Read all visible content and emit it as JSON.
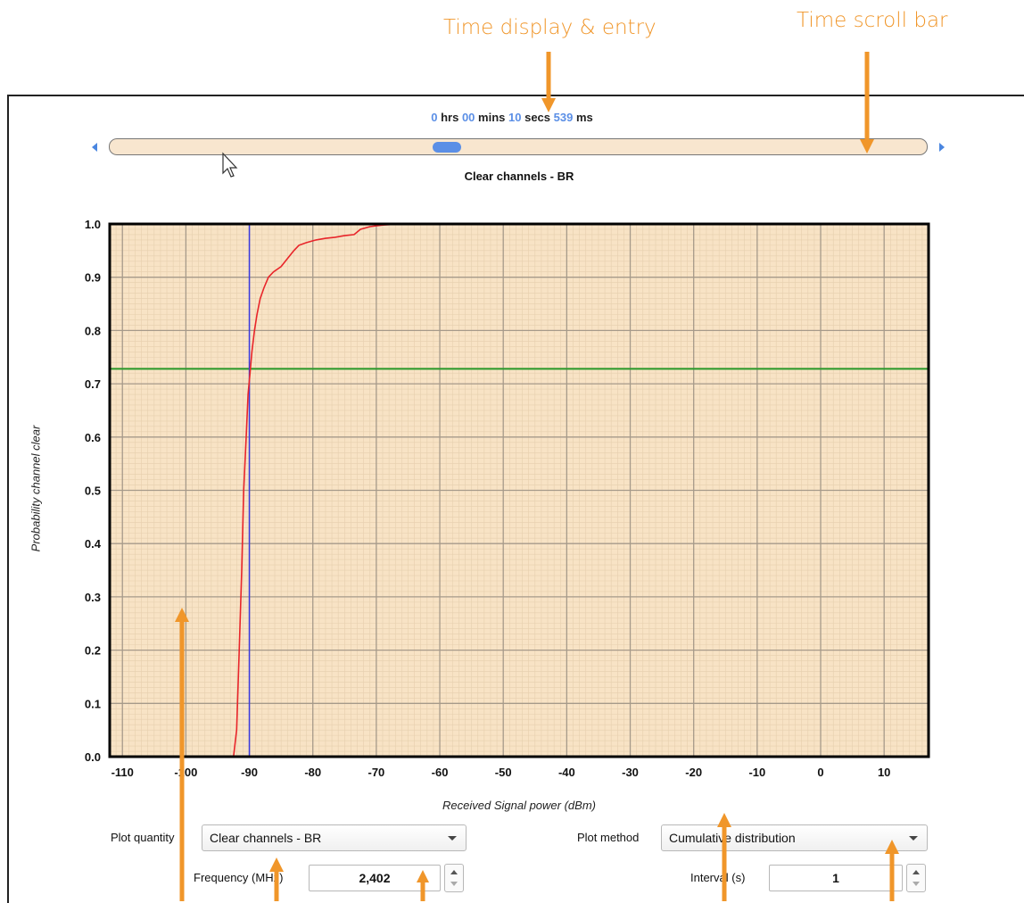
{
  "callouts": {
    "time_display": "Time display & entry",
    "time_scroll": "Time scroll bar"
  },
  "time": {
    "hrs": "0",
    "hrs_label": "hrs",
    "mins": "00",
    "mins_label": "mins",
    "secs": "10",
    "secs_label": "secs",
    "ms": "539",
    "ms_label": "ms"
  },
  "scrollbar": {
    "position_fraction": 0.41
  },
  "colors": {
    "accent": "#f0962a",
    "time_value": "#5b8fe6",
    "plot_bg": "#f8e3c5",
    "curve": "#e8252a",
    "threshold": "#2a9a2a",
    "marker": "#3a3ae0"
  },
  "controls": {
    "plot_quantity_label": "Plot quantity",
    "plot_quantity_value": "Clear channels - BR",
    "plot_method_label": "Plot method",
    "plot_method_value": "Cumulative distribution",
    "frequency_label": "Frequency (MHz)",
    "frequency_value": "2,402",
    "interval_label": "Interval (s)",
    "interval_value": "1"
  },
  "chart_data": {
    "type": "line",
    "title": "Clear channels - BR",
    "xlabel": "Received Signal power (dBm)",
    "ylabel": "Probability channel clear",
    "xlim": [
      -112,
      17
    ],
    "ylim": [
      0,
      1
    ],
    "xticks": [
      -110,
      -100,
      -90,
      -80,
      -70,
      -60,
      -50,
      -40,
      -30,
      -20,
      -10,
      0,
      10
    ],
    "yticks": [
      "0.0",
      "0.1",
      "0.2",
      "0.3",
      "0.4",
      "0.5",
      "0.6",
      "0.7",
      "0.8",
      "0.9",
      "1.0"
    ],
    "grid": true,
    "series": [
      {
        "x": [
          -92.5,
          -92.0,
          -91.6,
          -91.2,
          -90.9,
          -90.5,
          -90.2,
          -89.9,
          -89.6,
          -89.2,
          -88.8,
          -88.3,
          -87.7,
          -87.0,
          -86.2,
          -85.0,
          -84.0,
          -83.0,
          -82.2,
          -81.0,
          -79.5,
          -78.0,
          -76.5,
          -75.0,
          -73.5,
          -72.5,
          -71.0,
          -69.0,
          -66.0,
          -62.0
        ],
        "y": [
          0.0,
          0.05,
          0.2,
          0.35,
          0.5,
          0.6,
          0.68,
          0.72,
          0.76,
          0.8,
          0.83,
          0.86,
          0.88,
          0.9,
          0.91,
          0.92,
          0.935,
          0.95,
          0.96,
          0.965,
          0.97,
          0.973,
          0.975,
          0.978,
          0.98,
          0.99,
          0.995,
          0.998,
          1.0,
          1.0
        ]
      }
    ],
    "hline_y": 0.728,
    "vline_x": -90
  }
}
